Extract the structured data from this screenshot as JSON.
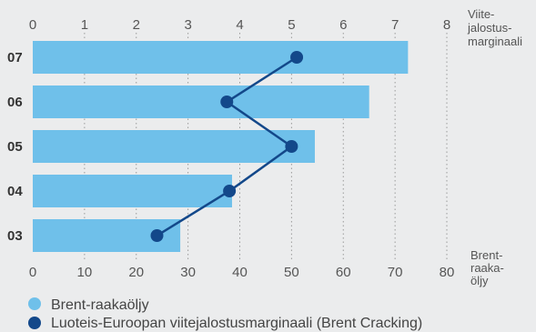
{
  "chart_data": {
    "type": "bar",
    "categories": [
      "07",
      "06",
      "05",
      "04",
      "03"
    ],
    "series": [
      {
        "name": "Brent-raakaöljy",
        "values": [
          72.5,
          65.0,
          54.5,
          38.5,
          28.5
        ],
        "axis": "bottom",
        "color": "#6fc0ea"
      },
      {
        "name": "Luoteis-Euroopan viitejalostusmarginaali (Brent Cracking)",
        "values": [
          5.1,
          3.75,
          5.0,
          3.8,
          2.4
        ],
        "axis": "top",
        "style": "line-with-markers",
        "color": "#13488a"
      }
    ],
    "top_axis": {
      "ticks": [
        "0",
        "1",
        "2",
        "3",
        "4",
        "5",
        "6",
        "7",
        "8"
      ],
      "range": [
        0,
        8
      ],
      "label_lines": [
        "Viite-",
        "jalostus-",
        "marginaali"
      ]
    },
    "bottom_axis": {
      "ticks": [
        "0",
        "10",
        "20",
        "30",
        "40",
        "50",
        "60",
        "70",
        "80"
      ],
      "range": [
        0,
        80
      ],
      "label_lines": [
        "Brent-",
        "raaka-",
        "öljy"
      ]
    },
    "grid": "vertical-dotted",
    "legend_position": "bottom-left"
  }
}
